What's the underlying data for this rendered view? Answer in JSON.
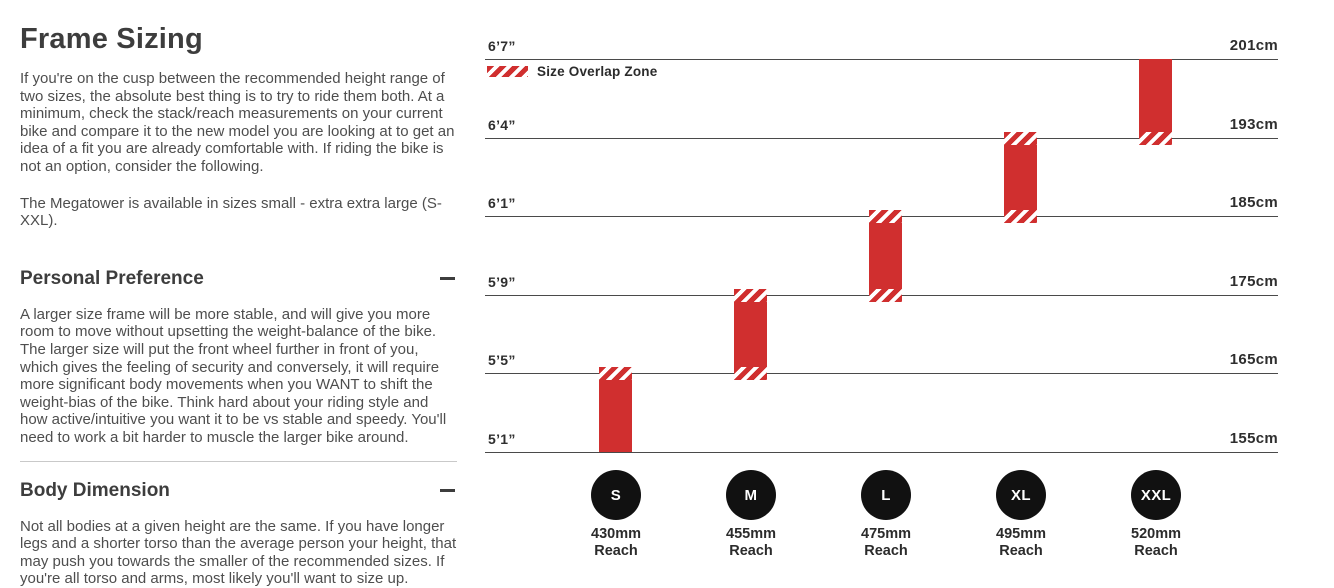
{
  "left": {
    "title": "Frame Sizing",
    "intro": "If you're on the cusp between the recommended height range of two sizes, the absolute best thing is to try to ride them both. At a minimum, check the stack/reach measurements on your current bike and compare it to the new model you are looking at to get an idea of a fit you are already comfortable with. If riding the bike is not an option, consider the following.",
    "availability": "The Megatower is available in sizes small - extra extra large (S-XXL).",
    "sections": [
      {
        "title": "Personal Preference",
        "collapse_icon": "minus-icon",
        "body": "A larger size frame will be more stable, and will give you more room to move without upsetting the weight-balance of the bike. The larger size will put the front wheel further in front of you, which gives the feeling of security and conversely, it will require more significant body movements when you WANT to shift the weight-bias of the bike. Think hard about your riding style and how active/intuitive you want it to be vs stable and speedy. You'll need to work a bit harder to muscle the larger bike around."
      },
      {
        "title": "Body Dimension",
        "collapse_icon": "minus-icon",
        "body": "Not all bodies at a given height are the same. If you have longer legs and a shorter torso than the average person your height, that may push you towards the smaller of the recommended sizes. If you're all torso and arms, most likely you'll want to size up."
      }
    ]
  },
  "chart_data": {
    "type": "bar",
    "orientation": "vertical-range-bars",
    "legend": {
      "label": "Size Overlap Zone",
      "swatch_style": "diagonal-hatch",
      "swatch_color": "#d02f2f"
    },
    "axis": {
      "left_unit": "feet-inches",
      "right_unit": "cm",
      "gridlines": [
        {
          "left": "6’7”",
          "right": "201cm",
          "cm": 201
        },
        {
          "left": "6’4”",
          "right": "193cm",
          "cm": 193
        },
        {
          "left": "6’1”",
          "right": "185cm",
          "cm": 185
        },
        {
          "left": "5’9”",
          "right": "175cm",
          "cm": 175
        },
        {
          "left": "5’5”",
          "right": "165cm",
          "cm": 165
        },
        {
          "left": "5’1”",
          "right": "155cm",
          "cm": 155
        }
      ]
    },
    "sizes": [
      {
        "label": "S",
        "reach_text": "430mm",
        "reach_caption": "Reach",
        "reach_mm": 430,
        "height_range": "5’1”-5’5”",
        "height_range_cm": [
          155,
          165
        ],
        "overlap_top": true,
        "overlap_bottom": false
      },
      {
        "label": "M",
        "reach_text": "455mm",
        "reach_caption": "Reach",
        "reach_mm": 455,
        "height_range": "5’5”-5’9”",
        "height_range_cm": [
          165,
          175
        ],
        "overlap_top": true,
        "overlap_bottom": true
      },
      {
        "label": "L",
        "reach_text": "475mm",
        "reach_caption": "Reach",
        "reach_mm": 475,
        "height_range": "5’9”-6’1”",
        "height_range_cm": [
          175,
          185
        ],
        "overlap_top": true,
        "overlap_bottom": true
      },
      {
        "label": "XL",
        "reach_text": "495mm",
        "reach_caption": "Reach",
        "reach_mm": 495,
        "height_range": "6’1”-6’4”",
        "height_range_cm": [
          185,
          193
        ],
        "overlap_top": true,
        "overlap_bottom": true
      },
      {
        "label": "XXL",
        "reach_text": "520mm",
        "reach_caption": "Reach",
        "reach_mm": 520,
        "height_range": "6’4”-6’7”",
        "height_range_cm": [
          193,
          201
        ],
        "overlap_top": false,
        "overlap_bottom": true
      }
    ],
    "colors": {
      "bar": "#d02f2f",
      "gridline": "#4a4a4a",
      "circle": "#111111",
      "circle_text": "#ffffff"
    },
    "grid": "horizontal-lines-on",
    "legend_position": "top-left"
  }
}
